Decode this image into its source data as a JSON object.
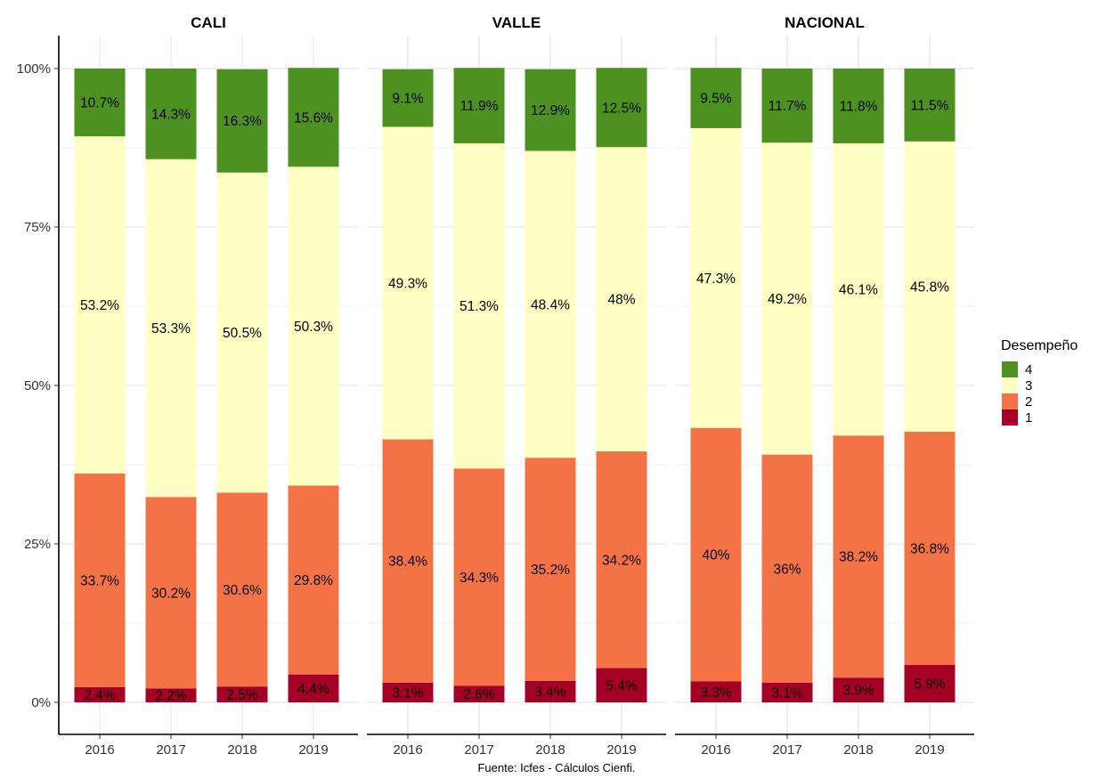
{
  "chart_data": {
    "type": "bar",
    "stacked": "percent",
    "categories": [
      "2016",
      "2017",
      "2018",
      "2019"
    ],
    "y_ticks": [
      "0%",
      "25%",
      "50%",
      "75%",
      "100%"
    ],
    "ylim": [
      0,
      100
    ],
    "grid": true,
    "legend": {
      "title": "Desempeño",
      "position": "right",
      "entries": [
        {
          "label": "4",
          "color": "#4d9221"
        },
        {
          "label": "3",
          "color": "#ffffc4"
        },
        {
          "label": "2",
          "color": "#f47346"
        },
        {
          "label": "1",
          "color": "#a50026"
        }
      ]
    },
    "series_order": [
      "1",
      "2",
      "3",
      "4"
    ],
    "series_colors": {
      "1": "#a50026",
      "2": "#f47346",
      "3": "#ffffc4",
      "4": "#4d9221"
    },
    "panels": [
      {
        "title": "CALI",
        "series": [
          {
            "name": "1",
            "values": [
              2.4,
              2.2,
              2.5,
              4.4
            ],
            "labels": [
              "2.4%",
              "2.2%",
              "2.5%",
              "4.4%"
            ]
          },
          {
            "name": "2",
            "values": [
              33.7,
              30.2,
              30.6,
              29.8
            ],
            "labels": [
              "33.7%",
              "30.2%",
              "30.6%",
              "29.8%"
            ]
          },
          {
            "name": "3",
            "values": [
              53.2,
              53.3,
              50.5,
              50.3
            ],
            "labels": [
              "53.2%",
              "53.3%",
              "50.5%",
              "50.3%"
            ]
          },
          {
            "name": "4",
            "values": [
              10.7,
              14.3,
              16.3,
              15.6
            ],
            "labels": [
              "10.7%",
              "14.3%",
              "16.3%",
              "15.6%"
            ]
          }
        ]
      },
      {
        "title": "VALLE",
        "series": [
          {
            "name": "1",
            "values": [
              3.1,
              2.6,
              3.4,
              5.4
            ],
            "labels": [
              "3.1%",
              "2.6%",
              "3.4%",
              "5.4%"
            ]
          },
          {
            "name": "2",
            "values": [
              38.4,
              34.3,
              35.2,
              34.2
            ],
            "labels": [
              "38.4%",
              "34.3%",
              "35.2%",
              "34.2%"
            ]
          },
          {
            "name": "3",
            "values": [
              49.3,
              51.3,
              48.4,
              48
            ],
            "labels": [
              "49.3%",
              "51.3%",
              "48.4%",
              "48%"
            ]
          },
          {
            "name": "4",
            "values": [
              9.1,
              11.9,
              12.9,
              12.5
            ],
            "labels": [
              "9.1%",
              "11.9%",
              "12.9%",
              "12.5%"
            ]
          }
        ]
      },
      {
        "title": "NACIONAL",
        "series": [
          {
            "name": "1",
            "values": [
              3.3,
              3.1,
              3.9,
              5.9
            ],
            "labels": [
              "3.3%",
              "3.1%",
              "3.9%",
              "5.9%"
            ]
          },
          {
            "name": "2",
            "values": [
              40,
              36,
              38.2,
              36.8
            ],
            "labels": [
              "40%",
              "36%",
              "38.2%",
              "36.8%"
            ]
          },
          {
            "name": "3",
            "values": [
              47.3,
              49.2,
              46.1,
              45.8
            ],
            "labels": [
              "47.3%",
              "49.2%",
              "46.1%",
              "45.8%"
            ]
          },
          {
            "name": "4",
            "values": [
              9.5,
              11.7,
              11.8,
              11.5
            ],
            "labels": [
              "9.5%",
              "11.7%",
              "11.8%",
              "11.5%"
            ]
          }
        ]
      }
    ],
    "caption": "Fuente: Icfes - Cálculos Cienfi."
  }
}
